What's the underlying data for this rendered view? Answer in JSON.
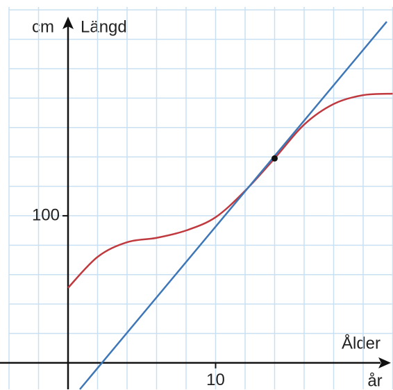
{
  "chart_data": {
    "type": "line",
    "y_label": "Längd",
    "y_unit": "cm",
    "x_label": "Ålder",
    "x_unit": "år",
    "xlim": [
      -4,
      22
    ],
    "ylim": [
      -18,
      242
    ],
    "xticks": [
      10
    ],
    "yticks": [
      100
    ],
    "xgrid": [
      -4,
      -2,
      2,
      4,
      6,
      8,
      10,
      12,
      14,
      16,
      18,
      20,
      22
    ],
    "ygrid": [
      20,
      40,
      60,
      80,
      100,
      120,
      140,
      160,
      180,
      200,
      220,
      240
    ],
    "grid_color": "#c9e0f2",
    "series": [
      {
        "color": "#c0393f",
        "x": [
          0,
          2,
          4,
          6,
          8,
          10,
          12,
          14,
          16,
          18,
          20,
          22
        ],
        "values": [
          51,
          72,
          82,
          85,
          90,
          99,
          117,
          139,
          162,
          176,
          182,
          183
        ]
      },
      {
        "color": "#3e77b8",
        "x": [
          0.8,
          21.6
        ],
        "values": [
          -18,
          232
        ]
      }
    ],
    "points": [
      {
        "x": 14,
        "y": 139,
        "color": "#111"
      }
    ]
  }
}
